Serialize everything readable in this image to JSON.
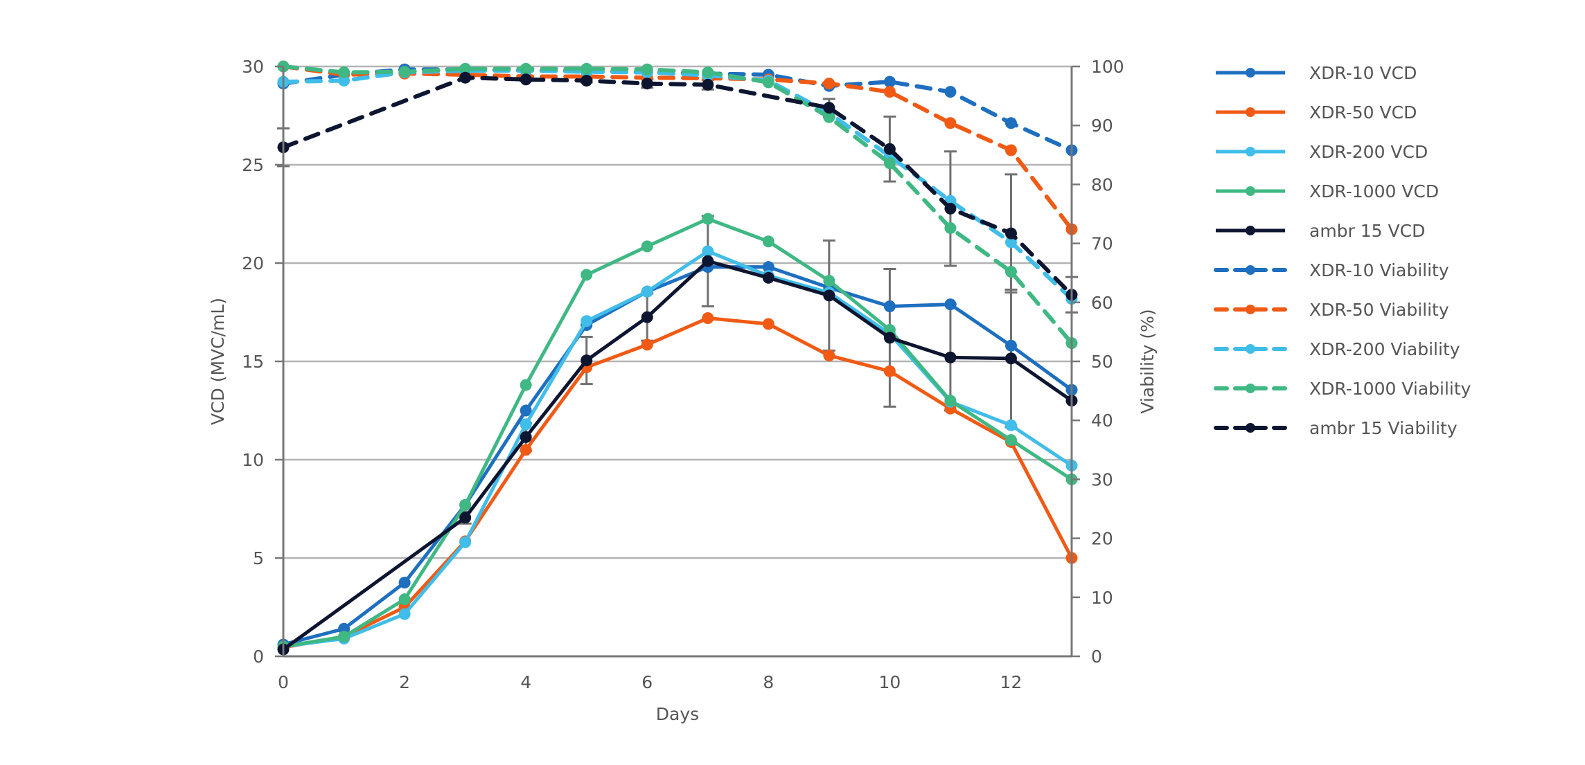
{
  "chart_data": {
    "type": "line",
    "xlabel": "Days",
    "ylabel": "VCD (MVC/mL)",
    "y2label": "Viability (%)",
    "xlim": [
      0,
      13
    ],
    "ylim": [
      0,
      30
    ],
    "y2lim": [
      0,
      100
    ],
    "xticks": [
      0,
      2,
      4,
      6,
      8,
      10,
      12
    ],
    "yticks": [
      0,
      5,
      10,
      15,
      20,
      25,
      30
    ],
    "y2ticks": [
      0,
      10,
      20,
      30,
      40,
      50,
      60,
      70,
      80,
      90,
      100
    ],
    "grid": "horizontal",
    "legend": "right",
    "x": [
      0,
      1,
      2,
      3,
      4,
      5,
      6,
      7,
      8,
      9,
      10,
      11,
      12,
      13
    ],
    "series": [
      {
        "name": "XDR-10 VCD",
        "axis": "left",
        "dash": false,
        "color": "#1f6fc0",
        "values": [
          0.6,
          1.4,
          3.75,
          7.7,
          12.5,
          16.85,
          18.55,
          19.8,
          19.8,
          18.75,
          17.8,
          17.9,
          15.8,
          13.55
        ]
      },
      {
        "name": "XDR-50 VCD",
        "axis": "left",
        "dash": false,
        "color": "#f05a14",
        "values": [
          0.45,
          1.0,
          2.5,
          5.85,
          10.5,
          14.7,
          15.85,
          17.2,
          16.9,
          15.3,
          14.5,
          12.6,
          10.9,
          5.0
        ]
      },
      {
        "name": "XDR-200 VCD",
        "axis": "left",
        "dash": false,
        "color": "#40bde8",
        "values": [
          0.5,
          0.9,
          2.15,
          5.8,
          11.8,
          17.05,
          18.55,
          20.6,
          19.35,
          18.5,
          16.4,
          12.95,
          11.75,
          9.7
        ]
      },
      {
        "name": "XDR-1000 VCD",
        "axis": "left",
        "dash": false,
        "color": "#3fb883",
        "values": [
          0.5,
          1.0,
          2.9,
          7.7,
          13.8,
          19.4,
          20.85,
          22.25,
          21.1,
          19.1,
          16.6,
          13.0,
          11.0,
          9.0
        ]
      },
      {
        "name": "ambr 15 VCD",
        "axis": "left",
        "dash": false,
        "color": "#0d1530",
        "values": [
          0.35,
          null,
          null,
          7.05,
          11.15,
          15.05,
          17.25,
          20.1,
          19.25,
          18.35,
          16.2,
          15.2,
          15.15,
          13.0
        ],
        "error": [
          0,
          null,
          null,
          0.3,
          0.7,
          1.2,
          1.2,
          2.3,
          0,
          2.8,
          3.5,
          2.7,
          3.5,
          0
        ]
      },
      {
        "name": "XDR-10 Viability",
        "axis": "right",
        "dash": true,
        "color": "#1f6fc0",
        "values": [
          97.1,
          98.6,
          99.5,
          99.5,
          99.3,
          99.2,
          99.0,
          98.8,
          98.6,
          96.7,
          97.4,
          95.7,
          90.4,
          85.8
        ]
      },
      {
        "name": "XDR-50 Viability",
        "axis": "right",
        "dash": true,
        "color": "#f05a14",
        "values": [
          100,
          98.6,
          98.8,
          98.6,
          98.3,
          98.3,
          98.1,
          98.0,
          97.8,
          97.1,
          95.7,
          90.4,
          85.8,
          72.4
        ]
      },
      {
        "name": "XDR-200 Viability",
        "axis": "right",
        "dash": true,
        "color": "#40bde8",
        "values": [
          97.4,
          97.6,
          99.0,
          99.3,
          99.3,
          99.1,
          99.0,
          98.5,
          97.6,
          92.1,
          84.8,
          77.2,
          70.2,
          60.6
        ]
      },
      {
        "name": "XDR-1000 Viability",
        "axis": "right",
        "dash": true,
        "color": "#3fb883",
        "values": [
          100,
          99.0,
          99.1,
          99.6,
          99.6,
          99.6,
          99.5,
          99.0,
          97.3,
          91.4,
          83.6,
          72.6,
          65.2,
          53.1
        ]
      },
      {
        "name": "ambr 15 Viability",
        "axis": "right",
        "dash": true,
        "color": "#0d1530",
        "values": [
          86.3,
          null,
          null,
          98.1,
          97.8,
          97.6,
          97.1,
          96.9,
          null,
          93.0,
          86.0,
          75.9,
          71.7,
          61.3
        ],
        "error": [
          3.2,
          null,
          null,
          0.3,
          0.3,
          0.3,
          0.7,
          0.8,
          null,
          1.5,
          5.5,
          9.7,
          10.0,
          3.0
        ]
      }
    ]
  }
}
